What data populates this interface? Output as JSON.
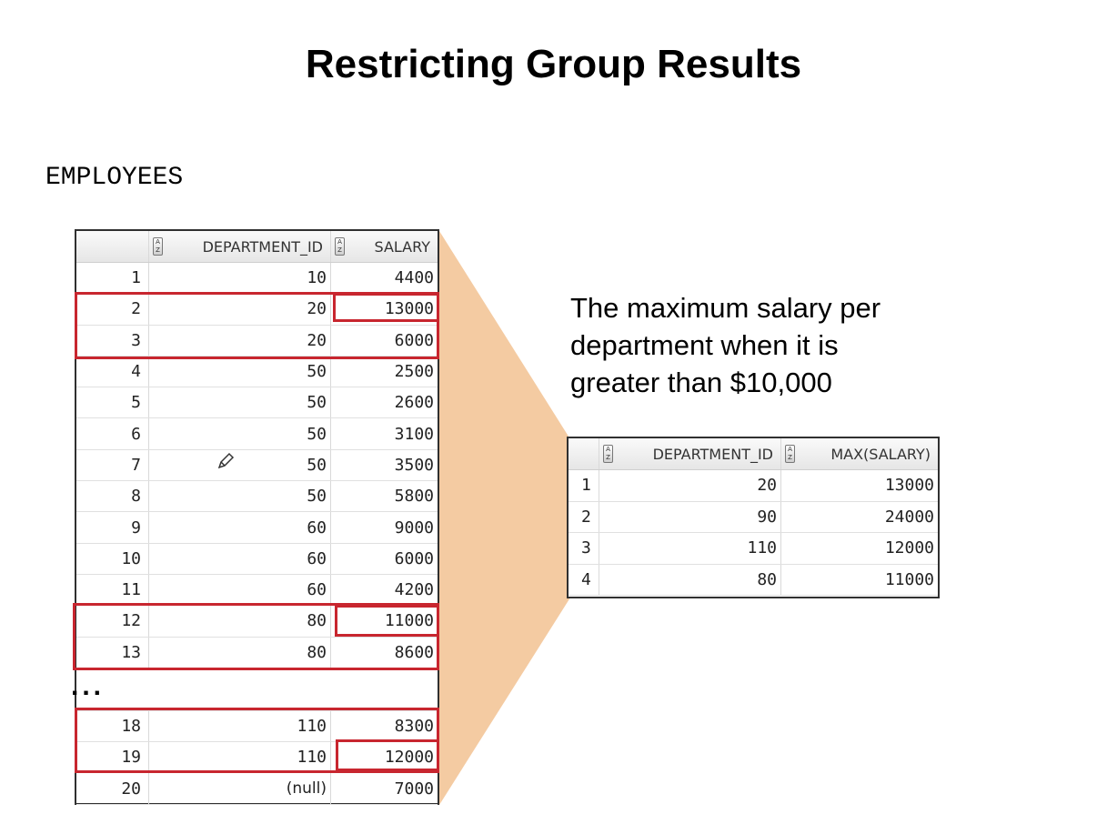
{
  "title": "Restricting Group Results",
  "table_caption": "EMPLOYEES",
  "description": [
    "The maximum salary per",
    "department when it is",
    "greater than $10,000"
  ],
  "ellipsis": "...",
  "sort_icon_text": "A Z",
  "employees": {
    "headers": [
      "",
      "DEPARTMENT_ID",
      "SALARY"
    ],
    "rows_top": [
      [
        "1",
        "10",
        "4400"
      ],
      [
        "2",
        "20",
        "13000"
      ],
      [
        "3",
        "20",
        "6000"
      ],
      [
        "4",
        "50",
        "2500"
      ],
      [
        "5",
        "50",
        "2600"
      ],
      [
        "6",
        "50",
        "3100"
      ],
      [
        "7",
        "50",
        "3500"
      ],
      [
        "8",
        "50",
        "5800"
      ],
      [
        "9",
        "60",
        "9000"
      ],
      [
        "10",
        "60",
        "6000"
      ],
      [
        "11",
        "60",
        "4200"
      ],
      [
        "12",
        "80",
        "11000"
      ],
      [
        "13",
        "80",
        "8600"
      ]
    ],
    "rows_bottom": [
      [
        "18",
        "110",
        "8300"
      ],
      [
        "19",
        "110",
        "12000"
      ],
      [
        "20",
        "(null)",
        "7000"
      ]
    ]
  },
  "result": {
    "headers": [
      "",
      "DEPARTMENT_ID",
      "MAX(SALARY)"
    ],
    "rows": [
      [
        "1",
        "20",
        "13000"
      ],
      [
        "2",
        "90",
        "24000"
      ],
      [
        "3",
        "110",
        "12000"
      ],
      [
        "4",
        "80",
        "11000"
      ]
    ]
  },
  "colors": {
    "highlight": "#c8262f",
    "callout": "#f4cba2"
  },
  "icons": {
    "sort": "sort-az-icon",
    "edit": "pencil-icon"
  }
}
